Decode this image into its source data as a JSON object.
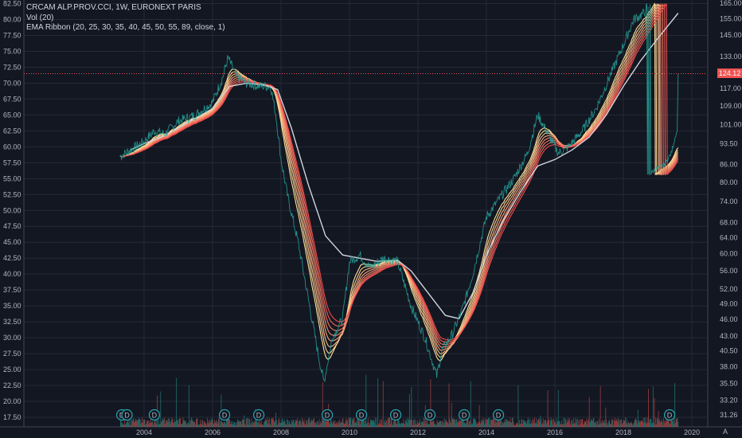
{
  "legend": {
    "symbol": "CRCAM ALP.PROV.CCI, 1W, EURONEXT PARIS",
    "vol": "Vol (20)",
    "ema": "EMA Ribbon (20, 25, 30, 35, 40, 45, 50, 55, 89, close, 1)"
  },
  "price_label": "124.12",
  "corner_label": "A",
  "colors": {
    "background": "#131722",
    "grid": "#262a36",
    "up": "#26a69a",
    "down": "#ef5350",
    "ribbon_fast": "#ffe59a",
    "ribbon_slow": "#f04a4a",
    "ema89": "#d1d4dc"
  },
  "chart_data": {
    "type": "line",
    "title": "CRCAM ALP.PROV.CCI, 1W, EURONEXT PARIS",
    "x_ticks": [
      "2004",
      "2006",
      "2008",
      "2010",
      "2012",
      "2014",
      "2016",
      "2018",
      "2020"
    ],
    "left_ticks": [
      "17.50",
      "20.00",
      "22.50",
      "25.00",
      "27.50",
      "30.00",
      "32.50",
      "35.00",
      "37.50",
      "40.00",
      "42.50",
      "45.00",
      "47.50",
      "50.00",
      "52.50",
      "55.00",
      "57.50",
      "60.00",
      "62.50",
      "65.00",
      "67.50",
      "70.00",
      "72.50",
      "75.00",
      "77.50",
      "80.00",
      "82.50"
    ],
    "right_ticks": [
      "31.26",
      "33.20",
      "35.50",
      "38.00",
      "40.50",
      "43.00",
      "46.00",
      "49.00",
      "52.00",
      "56.00",
      "60.00",
      "64.00",
      "68.00",
      "74.00",
      "80.00",
      "86.00",
      "93.50",
      "101.00",
      "109.00",
      "117.00",
      "124.00",
      "133.00",
      "145.00",
      "155.00",
      "165.00"
    ],
    "ylim_left": [
      17.5,
      82.5
    ],
    "last_price": 124.12,
    "dividend_marker_label": "D",
    "dividend_years": [
      2003.35,
      2003.5,
      2004.3,
      2006.35,
      2007.35,
      2009.35,
      2010.35,
      2011.35,
      2012.35,
      2013.35,
      2014.35,
      2019.35
    ],
    "price_path": [
      [
        2003.3,
        58.5
      ],
      [
        2003.6,
        59.5
      ],
      [
        2004.0,
        60.8
      ],
      [
        2004.3,
        62.5
      ],
      [
        2004.6,
        62.0
      ],
      [
        2005.0,
        64.0
      ],
      [
        2005.5,
        65.0
      ],
      [
        2006.0,
        67.0
      ],
      [
        2006.3,
        71.0
      ],
      [
        2006.45,
        74.0
      ],
      [
        2006.7,
        71.0
      ],
      [
        2007.0,
        70.0
      ],
      [
        2007.4,
        69.5
      ],
      [
        2007.7,
        69.5
      ],
      [
        2007.85,
        65.0
      ],
      [
        2008.0,
        58.0
      ],
      [
        2008.2,
        52.0
      ],
      [
        2008.5,
        45.0
      ],
      [
        2008.8,
        36.0
      ],
      [
        2009.1,
        27.0
      ],
      [
        2009.25,
        23.0
      ],
      [
        2009.5,
        30.0
      ],
      [
        2009.8,
        33.0
      ],
      [
        2010.0,
        42.0
      ],
      [
        2010.3,
        43.0
      ],
      [
        2010.6,
        41.0
      ],
      [
        2011.0,
        42.5
      ],
      [
        2011.4,
        42.0
      ],
      [
        2011.8,
        35.0
      ],
      [
        2012.2,
        30.0
      ],
      [
        2012.55,
        24.0
      ],
      [
        2012.7,
        28.0
      ],
      [
        2013.0,
        30.5
      ],
      [
        2013.3,
        34.5
      ],
      [
        2013.6,
        40.0
      ],
      [
        2014.0,
        49.0
      ],
      [
        2014.4,
        52.0
      ],
      [
        2014.8,
        55.0
      ],
      [
        2015.2,
        59.0
      ],
      [
        2015.5,
        65.0
      ],
      [
        2015.8,
        62.0
      ],
      [
        2016.1,
        59.0
      ],
      [
        2016.4,
        60.0
      ],
      [
        2016.8,
        62.5
      ],
      [
        2017.2,
        66.0
      ],
      [
        2017.6,
        71.0
      ],
      [
        2018.0,
        76.0
      ],
      [
        2018.3,
        80.0
      ],
      [
        2018.6,
        81.0
      ],
      [
        2018.9,
        84.0
      ],
      [
        2019.2,
        86.0
      ],
      [
        2019.4,
        90.0
      ],
      [
        2019.55,
        98.0
      ],
      [
        2019.6,
        124.12
      ]
    ],
    "ema89_path": [
      [
        2003.6,
        59.5
      ],
      [
        2004.0,
        60.5
      ],
      [
        2004.5,
        61.5
      ],
      [
        2005.0,
        63.0
      ],
      [
        2005.5,
        64.5
      ],
      [
        2006.0,
        66.0
      ],
      [
        2006.5,
        69.5
      ],
      [
        2007.0,
        70.0
      ],
      [
        2007.5,
        69.7
      ],
      [
        2007.9,
        69.0
      ],
      [
        2008.3,
        63.0
      ],
      [
        2008.8,
        54.0
      ],
      [
        2009.3,
        46.0
      ],
      [
        2009.8,
        43.0
      ],
      [
        2010.3,
        42.5
      ],
      [
        2010.8,
        42.0
      ],
      [
        2011.4,
        42.2
      ],
      [
        2011.8,
        40.5
      ],
      [
        2012.3,
        37.0
      ],
      [
        2012.8,
        33.5
      ],
      [
        2013.2,
        33.0
      ],
      [
        2013.6,
        37.0
      ],
      [
        2014.0,
        43.0
      ],
      [
        2014.5,
        48.5
      ],
      [
        2015.0,
        53.0
      ],
      [
        2015.5,
        57.0
      ],
      [
        2016.0,
        58.0
      ],
      [
        2016.5,
        59.5
      ],
      [
        2017.0,
        61.5
      ],
      [
        2017.5,
        65.0
      ],
      [
        2018.0,
        69.5
      ],
      [
        2018.5,
        73.5
      ],
      [
        2019.0,
        77.0
      ],
      [
        2019.6,
        81.0
      ]
    ]
  }
}
